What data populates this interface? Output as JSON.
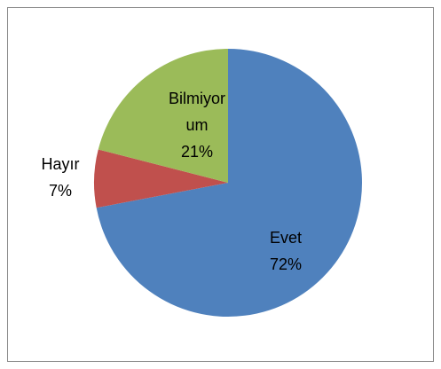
{
  "chart_data": {
    "type": "pie",
    "categories": [
      "Evet",
      "Hayır",
      "Bilmiyorum"
    ],
    "values": [
      72,
      7,
      21
    ],
    "value_labels": [
      "72%",
      "7%",
      "21%"
    ],
    "colors": [
      "#4f81bd",
      "#c0504d",
      "#9bbb59"
    ]
  }
}
